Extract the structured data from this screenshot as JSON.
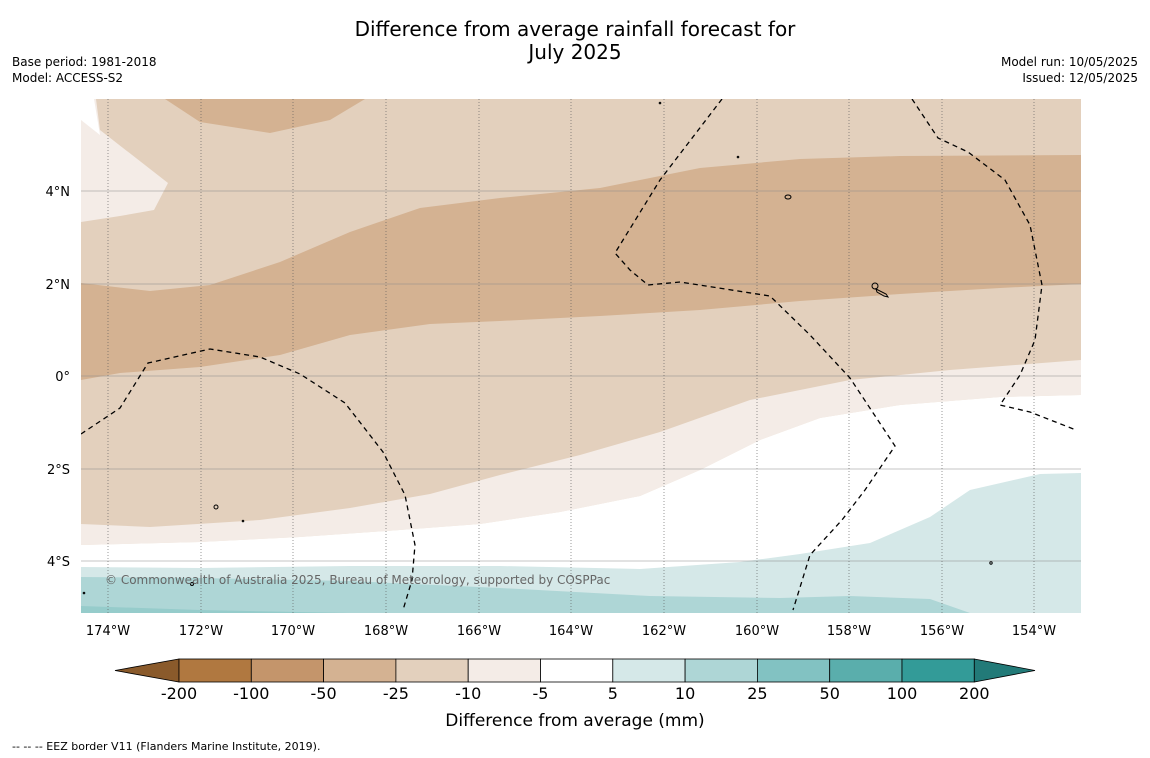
{
  "title_line1": "Difference from average rainfall forecast for",
  "title_line2": "July 2025",
  "base_period": "Base period: 1981-2018",
  "model": "Model: ACCESS-S2",
  "model_run": "Model run: 10/05/2025",
  "issued": "Issued: 12/05/2025",
  "copyright": "© Commonwealth of Australia 2025, Bureau of Meteorology, supported by COSPPac",
  "lat_labels": [
    "4°N",
    "2°N",
    "0°",
    "2°S",
    "4°S"
  ],
  "lon_labels": [
    "174°W",
    "172°W",
    "170°W",
    "168°W",
    "166°W",
    "164°W",
    "162°W",
    "160°W",
    "158°W",
    "156°W",
    "154°W"
  ],
  "colorbar": {
    "title": "Difference from average (mm)",
    "ticks": [
      "-200",
      "-100",
      "-50",
      "-25",
      "-10",
      "-5",
      "5",
      "10",
      "25",
      "50",
      "100",
      "200"
    ],
    "colors": [
      "#8a5a2b",
      "#b07840",
      "#c4956b",
      "#d4b292",
      "#e3d0bd",
      "#f4ece7",
      "#ffffff",
      "#d5e8e8",
      "#aed6d6",
      "#82c2c2",
      "#5aaeac",
      "#339b98",
      "#227a78"
    ]
  },
  "footnote": "--  --  -- EEZ border V11 (Flanders Marine Institute, 2019)."
}
